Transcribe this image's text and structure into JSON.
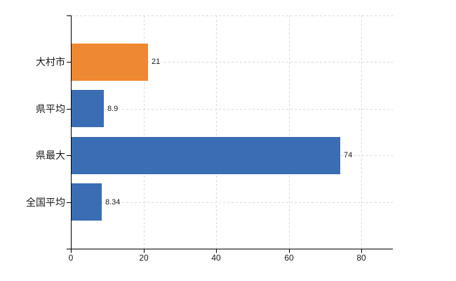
{
  "chart_data": {
    "type": "bar",
    "orientation": "horizontal",
    "title": "",
    "xlabel": "",
    "ylabel": "",
    "categories": [
      "大村市",
      "県平均",
      "県最大",
      "全国平均"
    ],
    "values": [
      21,
      8.9,
      74,
      8.34
    ],
    "value_labels": [
      "21",
      "8.9",
      "74",
      "8.34"
    ],
    "highlighted_category": "大村市",
    "x_ticks": [
      "0",
      "20",
      "40",
      "60",
      "80"
    ],
    "x_tick_values": [
      0,
      20,
      40,
      60,
      80
    ],
    "xlim": [
      0,
      88.5
    ],
    "grid": "dashed",
    "legend": "none",
    "colors": {
      "highlight_bar": "#EF8832",
      "default_bar": "#3A6DB3",
      "gridline": "#d9d9d9",
      "axis": "#000000",
      "text": "#1a1a1a",
      "background": "#ffffff"
    }
  }
}
